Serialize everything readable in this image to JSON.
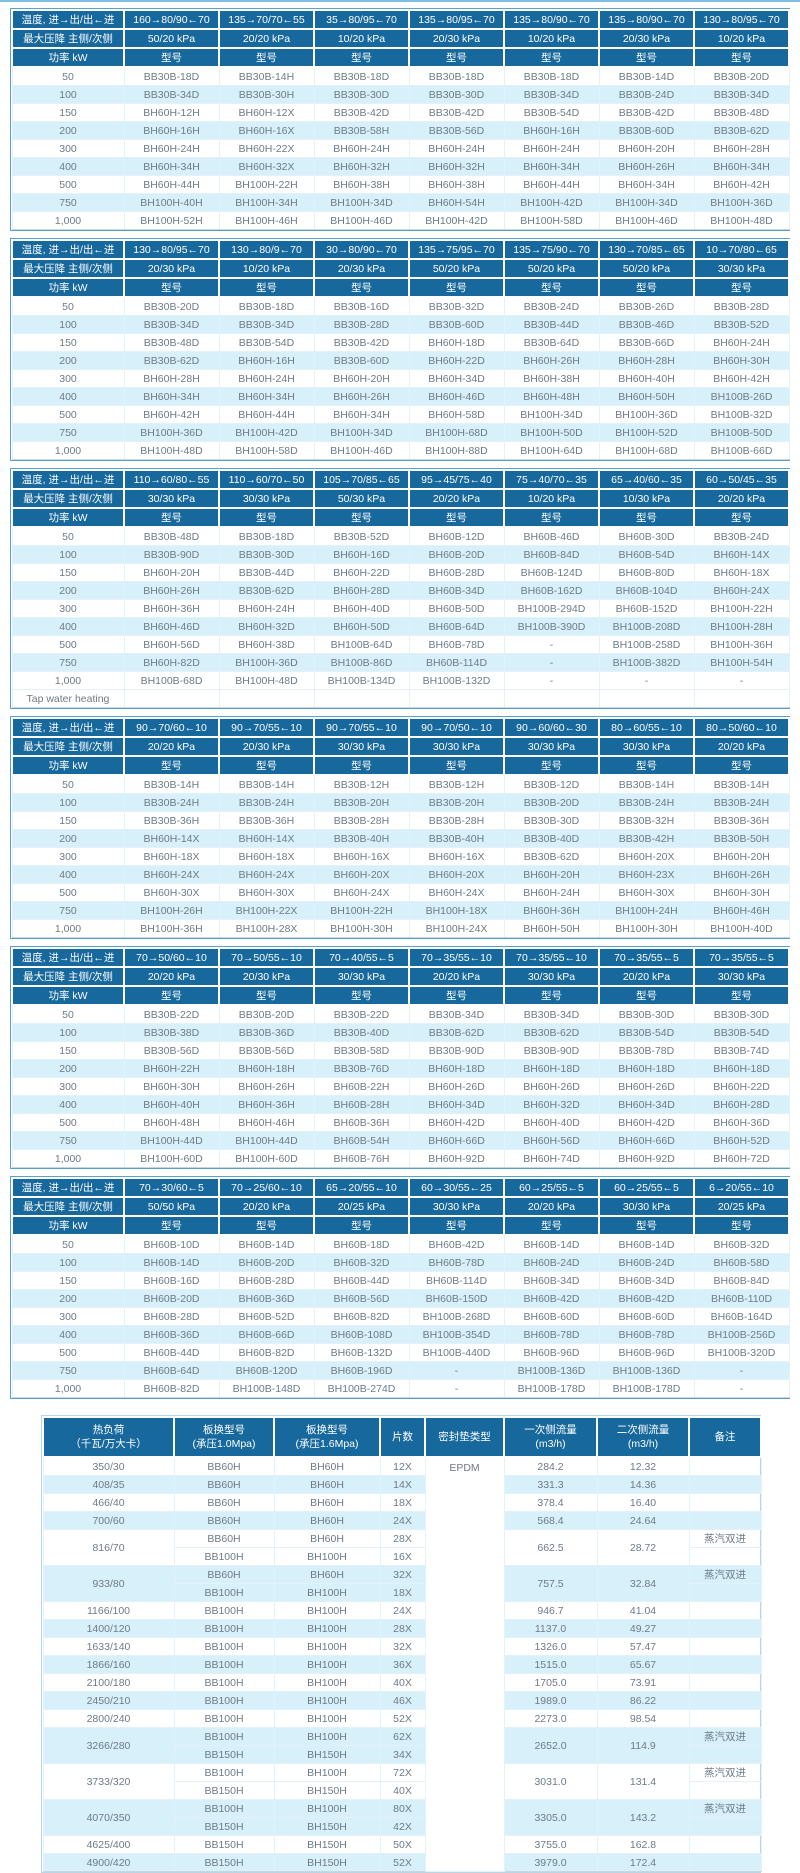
{
  "accent_colors": {
    "header_blue": "#17689d",
    "stripe_blue": "#d7f0fa",
    "body_text": "#6e7b86",
    "top_rule": "#7fbfe5"
  },
  "labels": {
    "temperature": "温度, 进→出/出←进",
    "pressure": "最大压降 主侧/次侧",
    "power": "功率 kW",
    "model": "型号",
    "tap_water": "Tap water heating"
  },
  "powers": [
    "50",
    "100",
    "150",
    "200",
    "300",
    "400",
    "500",
    "750",
    "1,000"
  ],
  "model_tables": [
    {
      "temps": [
        "160→80/90←70",
        "135→70/70←55",
        "35→80/95←70",
        "135→80/95←70",
        "135→80/90←70",
        "135→80/90←70",
        "130→80/95←70"
      ],
      "pressures": [
        "50/20 kPa",
        "20/20 kPa",
        "10/20 kPa",
        "20/30 kPa",
        "10/20 kPa",
        "20/30 kPa",
        "10/20 kPa"
      ],
      "models": [
        [
          "BB30B-18D",
          "BB30B-14H",
          "BB30B-18D",
          "BB30B-18D",
          "BB30B-18D",
          "BB30B-14D",
          "BB30B-20D"
        ],
        [
          "BB30B-34D",
          "BB30B-30H",
          "BB30B-30D",
          "BB30B-30D",
          "BB30B-34D",
          "BB30B-24D",
          "BB30B-34D"
        ],
        [
          "BH60H-12H",
          "BH60H-12X",
          "BB30B-42D",
          "BB30B-42D",
          "BB30B-54D",
          "BB30B-42D",
          "BB30B-48D"
        ],
        [
          "BH60H-16H",
          "BH60H-16X",
          "BB30B-58H",
          "BB30B-56D",
          "BH60H-16H",
          "BB30B-60D",
          "BB30B-62D"
        ],
        [
          "BH60H-24H",
          "BH60H-22X",
          "BH60H-24H",
          "BH60H-24H",
          "BH60H-24H",
          "BH60H-20H",
          "BH60H-28H"
        ],
        [
          "BH60H-34H",
          "BH60H-32X",
          "BH60H-32H",
          "BH60H-32H",
          "BH60H-34H",
          "BH60H-26H",
          "BH60H-34H"
        ],
        [
          "BH60H-44H",
          "BH100H-22H",
          "BH60H-38H",
          "BH60H-38H",
          "BH60H-44H",
          "BH60H-34H",
          "BH60H-42H"
        ],
        [
          "BH100H-40H",
          "BH100H-34H",
          "BH100H-34D",
          "BH60H-54H",
          "BH100H-42D",
          "BH100H-34D",
          "BH100H-36D"
        ],
        [
          "BH100H-52H",
          "BH100H-46H",
          "BH100H-46D",
          "BH100H-42D",
          "BH100H-58D",
          "BH100H-46D",
          "BH100H-48D"
        ]
      ]
    },
    {
      "temps": [
        "130→80/95←70",
        "130→80/9←70",
        "30→80/90←70",
        "135→75/95←70",
        "135→75/90←70",
        "130→70/85←65",
        "10→70/80←65"
      ],
      "pressures": [
        "20/30 kPa",
        "10/20 kPa",
        "20/30 kPa",
        "50/20 kPa",
        "50/20 kPa",
        "50/20 kPa",
        "30/30 kPa"
      ],
      "models": [
        [
          "BB30B-20D",
          "BB30B-18D",
          "BB30B-16D",
          "BB30B-32D",
          "BB30B-24D",
          "BB30B-26D",
          "BB30B-28D"
        ],
        [
          "BB30B-34D",
          "BB30B-34D",
          "BB30B-28D",
          "BB30B-60D",
          "BB30B-44D",
          "BB30B-46D",
          "BB30B-52D"
        ],
        [
          "BB30B-48D",
          "BB30B-54D",
          "BB30B-42D",
          "BH60H-18D",
          "BB30B-64D",
          "BB30B-66D",
          "BH60H-24H"
        ],
        [
          "BB30B-62D",
          "BH60H-16H",
          "BB30B-60D",
          "BH60H-22D",
          "BH60H-26H",
          "BH60H-28H",
          "BH60H-30H"
        ],
        [
          "BH60H-28H",
          "BH60H-24H",
          "BH60H-20H",
          "BH60H-34D",
          "BH60H-38H",
          "BH60H-40H",
          "BH60H-42H"
        ],
        [
          "BH60H-34H",
          "BH60H-34H",
          "BH60H-26H",
          "BH60H-46D",
          "BH60H-48H",
          "BH60H-50H",
          "BH100B-26D"
        ],
        [
          "BH60H-42H",
          "BH60H-44H",
          "BH60H-34H",
          "BH60H-58D",
          "BH100H-34D",
          "BH100H-36D",
          "BH100B-32D"
        ],
        [
          "BH100H-36D",
          "BH100H-42D",
          "BH100H-34D",
          "BH100H-68D",
          "BH100H-50D",
          "BH100H-52D",
          "BH100B-50D"
        ],
        [
          "BH100H-48D",
          "BH100H-58D",
          "BH100H-46D",
          "BH100H-88D",
          "BH100H-64D",
          "BH100H-68D",
          "BH100B-66D"
        ]
      ]
    },
    {
      "temps": [
        "110→60/80←55",
        "110→60/70←50",
        "105→70/85←65",
        "95→45/75←40",
        "75→40/70←35",
        "65→40/60←35",
        "60→50/45←35"
      ],
      "pressures": [
        "30/30 kPa",
        "30/30 kPa",
        "50/30 kPa",
        "20/20 kPa",
        "10/20 kPa",
        "10/30 kPa",
        "20/20 kPa"
      ],
      "models": [
        [
          "BB30B-48D",
          "BB30B-18D",
          "BB30B-52D",
          "BH60B-12D",
          "BH60B-46D",
          "BH60B-30D",
          "BB30B-24D"
        ],
        [
          "BB30B-90D",
          "BB30B-30D",
          "BH60H-16D",
          "BH60B-20D",
          "BH60B-84D",
          "BH60B-54D",
          "BH60H-14X"
        ],
        [
          "BH60H-20H",
          "BB30B-44D",
          "BH60H-22D",
          "BH60B-28D",
          "BH60B-124D",
          "BH60B-80D",
          "BH60H-18X"
        ],
        [
          "BH60H-26H",
          "BB30B-62D",
          "BH60H-28D",
          "BH60B-34D",
          "BH60B-162D",
          "BH60B-104D",
          "BH60H-24X"
        ],
        [
          "BH60H-36H",
          "BH60H-24H",
          "BH60H-40D",
          "BH60B-50D",
          "BH100B-294D",
          "BH60B-152D",
          "BH100H-22H"
        ],
        [
          "BH60H-46D",
          "BH60H-32D",
          "BH60H-50D",
          "BH60B-64D",
          "BH100B-390D",
          "BH100B-208D",
          "BH100H-28H"
        ],
        [
          "BH60H-56D",
          "BH60H-38D",
          "BH100B-64D",
          "BH60B-78D",
          "-",
          "BH100B-258D",
          "BH100H-36H"
        ],
        [
          "BH60H-82D",
          "BH100H-36D",
          "BH100B-86D",
          "BH60B-114D",
          "-",
          "BH100B-382D",
          "BH100H-54H"
        ],
        [
          "BH100B-68D",
          "BH100H-48D",
          "BH100B-134D",
          "BH100B-132D",
          "-",
          "-",
          "-"
        ]
      ],
      "footer_label": "Tap water heating"
    },
    {
      "temps": [
        "90→70/60←10",
        "90→70/55←10",
        "90→70/55←10",
        "90→70/50←10",
        "90→60/60←30",
        "80→60/55←10",
        "80→50/60←10"
      ],
      "pressures": [
        "20/20 kPa",
        "20/30 kPa",
        "30/30 kPa",
        "30/30 kPa",
        "30/30 kPa",
        "30/30 kPa",
        "20/20 kPa"
      ],
      "models": [
        [
          "BB30B-14H",
          "BB30B-14H",
          "BB30B-12H",
          "BB30B-12H",
          "BB30B-12D",
          "BB30B-14H",
          "BB30B-14H"
        ],
        [
          "BB30B-24H",
          "BB30B-24H",
          "BB30B-20H",
          "BB30B-20H",
          "BB30B-20D",
          "BB30B-24H",
          "BB30B-24H"
        ],
        [
          "BB30B-36H",
          "BB30B-36H",
          "BB30B-28H",
          "BB30B-28H",
          "BB30B-30D",
          "BB30B-32H",
          "BB30B-36H"
        ],
        [
          "BH60H-14X",
          "BH60H-14X",
          "BB30B-40H",
          "BB30B-40H",
          "BB30B-40D",
          "BB30B-42H",
          "BB30B-50H"
        ],
        [
          "BH60H-18X",
          "BH60H-18X",
          "BH60H-16X",
          "BH60H-16X",
          "BB30B-62D",
          "BH60H-20X",
          "BH60H-20H"
        ],
        [
          "BH60H-24X",
          "BH60H-24X",
          "BH60H-20X",
          "BH60H-20X",
          "BH60H-20H",
          "BH60H-23X",
          "BH60H-26H"
        ],
        [
          "BH60H-30X",
          "BH60H-30X",
          "BH60H-24X",
          "BH60H-24X",
          "BH60H-24H",
          "BH60H-30X",
          "BH60H-30H"
        ],
        [
          "BH100H-26H",
          "BH100H-22X",
          "BH100H-22H",
          "BH100H-18X",
          "BH60H-36H",
          "BH100H-24H",
          "BH60H-46H"
        ],
        [
          "BH100H-36H",
          "BH100H-28X",
          "BH100H-30H",
          "BH100H-24X",
          "BH60H-50H",
          "BH100H-30H",
          "BH100H-40D"
        ]
      ]
    },
    {
      "temps": [
        "70→50/60←10",
        "70→50/55←10",
        "70→40/55←5",
        "70→35/55←10",
        "70→35/55←10",
        "70→35/55←5",
        "70→35/55←5"
      ],
      "pressures": [
        "20/20 kPa",
        "20/30 kPa",
        "30/30 kPa",
        "20/20 kPa",
        "30/30 kPa",
        "20/20 kPa",
        "30/30 kPa"
      ],
      "models": [
        [
          "BB30B-22D",
          "BB30B-20D",
          "BB30B-22D",
          "BB30B-34D",
          "BB30B-34D",
          "BB30B-30D",
          "BB30B-30D"
        ],
        [
          "BB30B-38D",
          "BB30B-36D",
          "BB30B-40D",
          "BB30B-62D",
          "BB30B-62D",
          "BB30B-54D",
          "BB30B-54D"
        ],
        [
          "BB30B-56D",
          "BB30B-56D",
          "BB30B-58D",
          "BB30B-90D",
          "BB30B-90D",
          "BB30B-78D",
          "BB30B-74D"
        ],
        [
          "BH60H-22H",
          "BH60H-18H",
          "BB30B-76D",
          "BH60H-18D",
          "BH60H-18D",
          "BH60H-18D",
          "BH60H-18D"
        ],
        [
          "BH60H-30H",
          "BH60H-26H",
          "BH60B-22H",
          "BH60H-26D",
          "BH60H-26D",
          "BH60H-26D",
          "BH60H-22D"
        ],
        [
          "BH60H-40H",
          "BH60H-36H",
          "BH60B-28H",
          "BH60H-34D",
          "BH60H-32D",
          "BH60H-34D",
          "BH60H-28D"
        ],
        [
          "BH60H-48H",
          "BH60H-46H",
          "BH60B-36H",
          "BH60H-42D",
          "BH60H-40D",
          "BH60H-42D",
          "BH60H-36D"
        ],
        [
          "BH100H-44D",
          "BH100H-44D",
          "BH60B-54H",
          "BH60H-66D",
          "BH60H-56D",
          "BH60H-66D",
          "BH60H-52D"
        ],
        [
          "BH100H-60D",
          "BH100H-60D",
          "BH60B-76H",
          "BH60H-92D",
          "BH60H-74D",
          "BH60H-92D",
          "BH60H-72D"
        ]
      ]
    },
    {
      "temps": [
        "70→30/60←5",
        "70→25/60←10",
        "65→20/55←10",
        "60→30/55←25",
        "60→25/55←5",
        "60→25/55←5",
        "6→20/55←10"
      ],
      "pressures": [
        "50/50 kPa",
        "20/20 kPa",
        "20/25 kPa",
        "30/30 kPa",
        "20/20 kPa",
        "30/30 kPa",
        "20/25 kPa"
      ],
      "models": [
        [
          "BH60B-10D",
          "BH60B-14D",
          "BH60B-18D",
          "BH60B-42D",
          "BH60B-14D",
          "BH60B-14D",
          "BH60B-32D"
        ],
        [
          "BH60B-14D",
          "BH60B-20D",
          "BH60B-32D",
          "BH60B-78D",
          "BH60B-24D",
          "BH60B-24D",
          "BH60B-58D"
        ],
        [
          "BH60B-16D",
          "BH60B-28D",
          "BH60B-44D",
          "BH60B-114D",
          "BH60B-34D",
          "BH60B-34D",
          "BH60B-84D"
        ],
        [
          "BH60B-20D",
          "BH60B-36D",
          "BH60B-56D",
          "BH60B-150D",
          "BH60B-42D",
          "BH60B-42D",
          "BH60B-110D"
        ],
        [
          "BH60B-28D",
          "BH60B-52D",
          "BH60B-82D",
          "BH100B-268D",
          "BH60B-60D",
          "BH60B-60D",
          "BH60B-164D"
        ],
        [
          "BH60B-36D",
          "BH60B-66D",
          "BH60B-108D",
          "BH100B-354D",
          "BH60B-78D",
          "BH60B-78D",
          "BH100B-256D"
        ],
        [
          "BH60B-44D",
          "BH60B-82D",
          "BH60B-132D",
          "BH100B-440D",
          "BH60B-96D",
          "BH60B-96D",
          "BH100B-320D"
        ],
        [
          "BH60B-64D",
          "BH60B-120D",
          "BH60B-196D",
          "-",
          "BH100B-136D",
          "BH100B-136D",
          "-"
        ],
        [
          "BH60B-82D",
          "BH100B-148D",
          "BH100B-274D",
          "-",
          "BH100B-178D",
          "BH100B-178D",
          "-"
        ]
      ]
    }
  ],
  "spec_table": {
    "headers": [
      {
        "l1": "热负荷",
        "l2": "（千瓦/万大卡）"
      },
      {
        "l1": "板换型号",
        "l2": "(承压1.0Mpa)"
      },
      {
        "l1": "板换型号",
        "l2": "(承压1.6Mpa)"
      },
      {
        "l1": "片数",
        "l2": ""
      },
      {
        "l1": "密封垫类型",
        "l2": ""
      },
      {
        "l1": "一次侧流量",
        "l2": "(m3/h)"
      },
      {
        "l1": "二次侧流量",
        "l2": "(m3/h)"
      },
      {
        "l1": "备注",
        "l2": ""
      }
    ],
    "gasket": "EPDM",
    "steam_remark": "蒸汽双进",
    "rows": [
      {
        "load": "350/30",
        "subs": [
          {
            "m10": "BB60H",
            "m16": "BH60H",
            "pcs": "12X",
            "remark": ""
          }
        ],
        "flow1": "284.2",
        "flow2": "12.32"
      },
      {
        "load": "408/35",
        "subs": [
          {
            "m10": "BB60H",
            "m16": "BH60H",
            "pcs": "14X",
            "remark": ""
          }
        ],
        "flow1": "331.3",
        "flow2": "14.36"
      },
      {
        "load": "466/40",
        "subs": [
          {
            "m10": "BB60H",
            "m16": "BH60H",
            "pcs": "18X",
            "remark": ""
          }
        ],
        "flow1": "378.4",
        "flow2": "16.40"
      },
      {
        "load": "700/60",
        "subs": [
          {
            "m10": "BB60H",
            "m16": "BH60H",
            "pcs": "24X",
            "remark": ""
          }
        ],
        "flow1": "568.4",
        "flow2": "24.64"
      },
      {
        "load": "816/70",
        "subs": [
          {
            "m10": "BB60H",
            "m16": "BH60H",
            "pcs": "28X",
            "remark": "蒸汽双进"
          },
          {
            "m10": "BB100H",
            "m16": "BH100H",
            "pcs": "16X",
            "remark": ""
          }
        ],
        "flow1": "662.5",
        "flow2": "28.72"
      },
      {
        "load": "933/80",
        "subs": [
          {
            "m10": "BB60H",
            "m16": "BH60H",
            "pcs": "32X",
            "remark": "蒸汽双进"
          },
          {
            "m10": "BB100H",
            "m16": "BH100H",
            "pcs": "18X",
            "remark": ""
          }
        ],
        "flow1": "757.5",
        "flow2": "32.84"
      },
      {
        "load": "1166/100",
        "subs": [
          {
            "m10": "BB100H",
            "m16": "BH100H",
            "pcs": "24X",
            "remark": ""
          }
        ],
        "flow1": "946.7",
        "flow2": "41.04"
      },
      {
        "load": "1400/120",
        "subs": [
          {
            "m10": "BB100H",
            "m16": "BH100H",
            "pcs": "28X",
            "remark": ""
          }
        ],
        "flow1": "1137.0",
        "flow2": "49.27"
      },
      {
        "load": "1633/140",
        "subs": [
          {
            "m10": "BB100H",
            "m16": "BH100H",
            "pcs": "32X",
            "remark": ""
          }
        ],
        "flow1": "1326.0",
        "flow2": "57.47"
      },
      {
        "load": "1866/160",
        "subs": [
          {
            "m10": "BB100H",
            "m16": "BH100H",
            "pcs": "36X",
            "remark": ""
          }
        ],
        "flow1": "1515.0",
        "flow2": "65.67"
      },
      {
        "load": "2100/180",
        "subs": [
          {
            "m10": "BB100H",
            "m16": "BH100H",
            "pcs": "40X",
            "remark": ""
          }
        ],
        "flow1": "1705.0",
        "flow2": "73.91"
      },
      {
        "load": "2450/210",
        "subs": [
          {
            "m10": "BB100H",
            "m16": "BH100H",
            "pcs": "46X",
            "remark": ""
          }
        ],
        "flow1": "1989.0",
        "flow2": "86.22"
      },
      {
        "load": "2800/240",
        "subs": [
          {
            "m10": "BB100H",
            "m16": "BH100H",
            "pcs": "52X",
            "remark": ""
          }
        ],
        "flow1": "2273.0",
        "flow2": "98.54"
      },
      {
        "load": "3266/280",
        "subs": [
          {
            "m10": "BB100H",
            "m16": "BH100H",
            "pcs": "62X",
            "remark": "蒸汽双进"
          },
          {
            "m10": "BB150H",
            "m16": "BH150H",
            "pcs": "34X",
            "remark": ""
          }
        ],
        "flow1": "2652.0",
        "flow2": "114.9"
      },
      {
        "load": "3733/320",
        "subs": [
          {
            "m10": "BB100H",
            "m16": "BH100H",
            "pcs": "72X",
            "remark": "蒸汽双进"
          },
          {
            "m10": "BB150H",
            "m16": "BH150H",
            "pcs": "40X",
            "remark": ""
          }
        ],
        "flow1": "3031.0",
        "flow2": "131.4"
      },
      {
        "load": "4070/350",
        "subs": [
          {
            "m10": "BB100H",
            "m16": "BH100H",
            "pcs": "80X",
            "remark": "蒸汽双进"
          },
          {
            "m10": "BB150H",
            "m16": "BH150H",
            "pcs": "42X",
            "remark": ""
          }
        ],
        "flow1": "3305.0",
        "flow2": "143.2"
      },
      {
        "load": "4625/400",
        "subs": [
          {
            "m10": "BB150H",
            "m16": "BH150H",
            "pcs": "50X",
            "remark": ""
          }
        ],
        "flow1": "3755.0",
        "flow2": "162.8"
      },
      {
        "load": "4900/420",
        "subs": [
          {
            "m10": "BB150H",
            "m16": "BH150H",
            "pcs": "52X",
            "remark": ""
          }
        ],
        "flow1": "3979.0",
        "flow2": "172.4"
      }
    ]
  }
}
